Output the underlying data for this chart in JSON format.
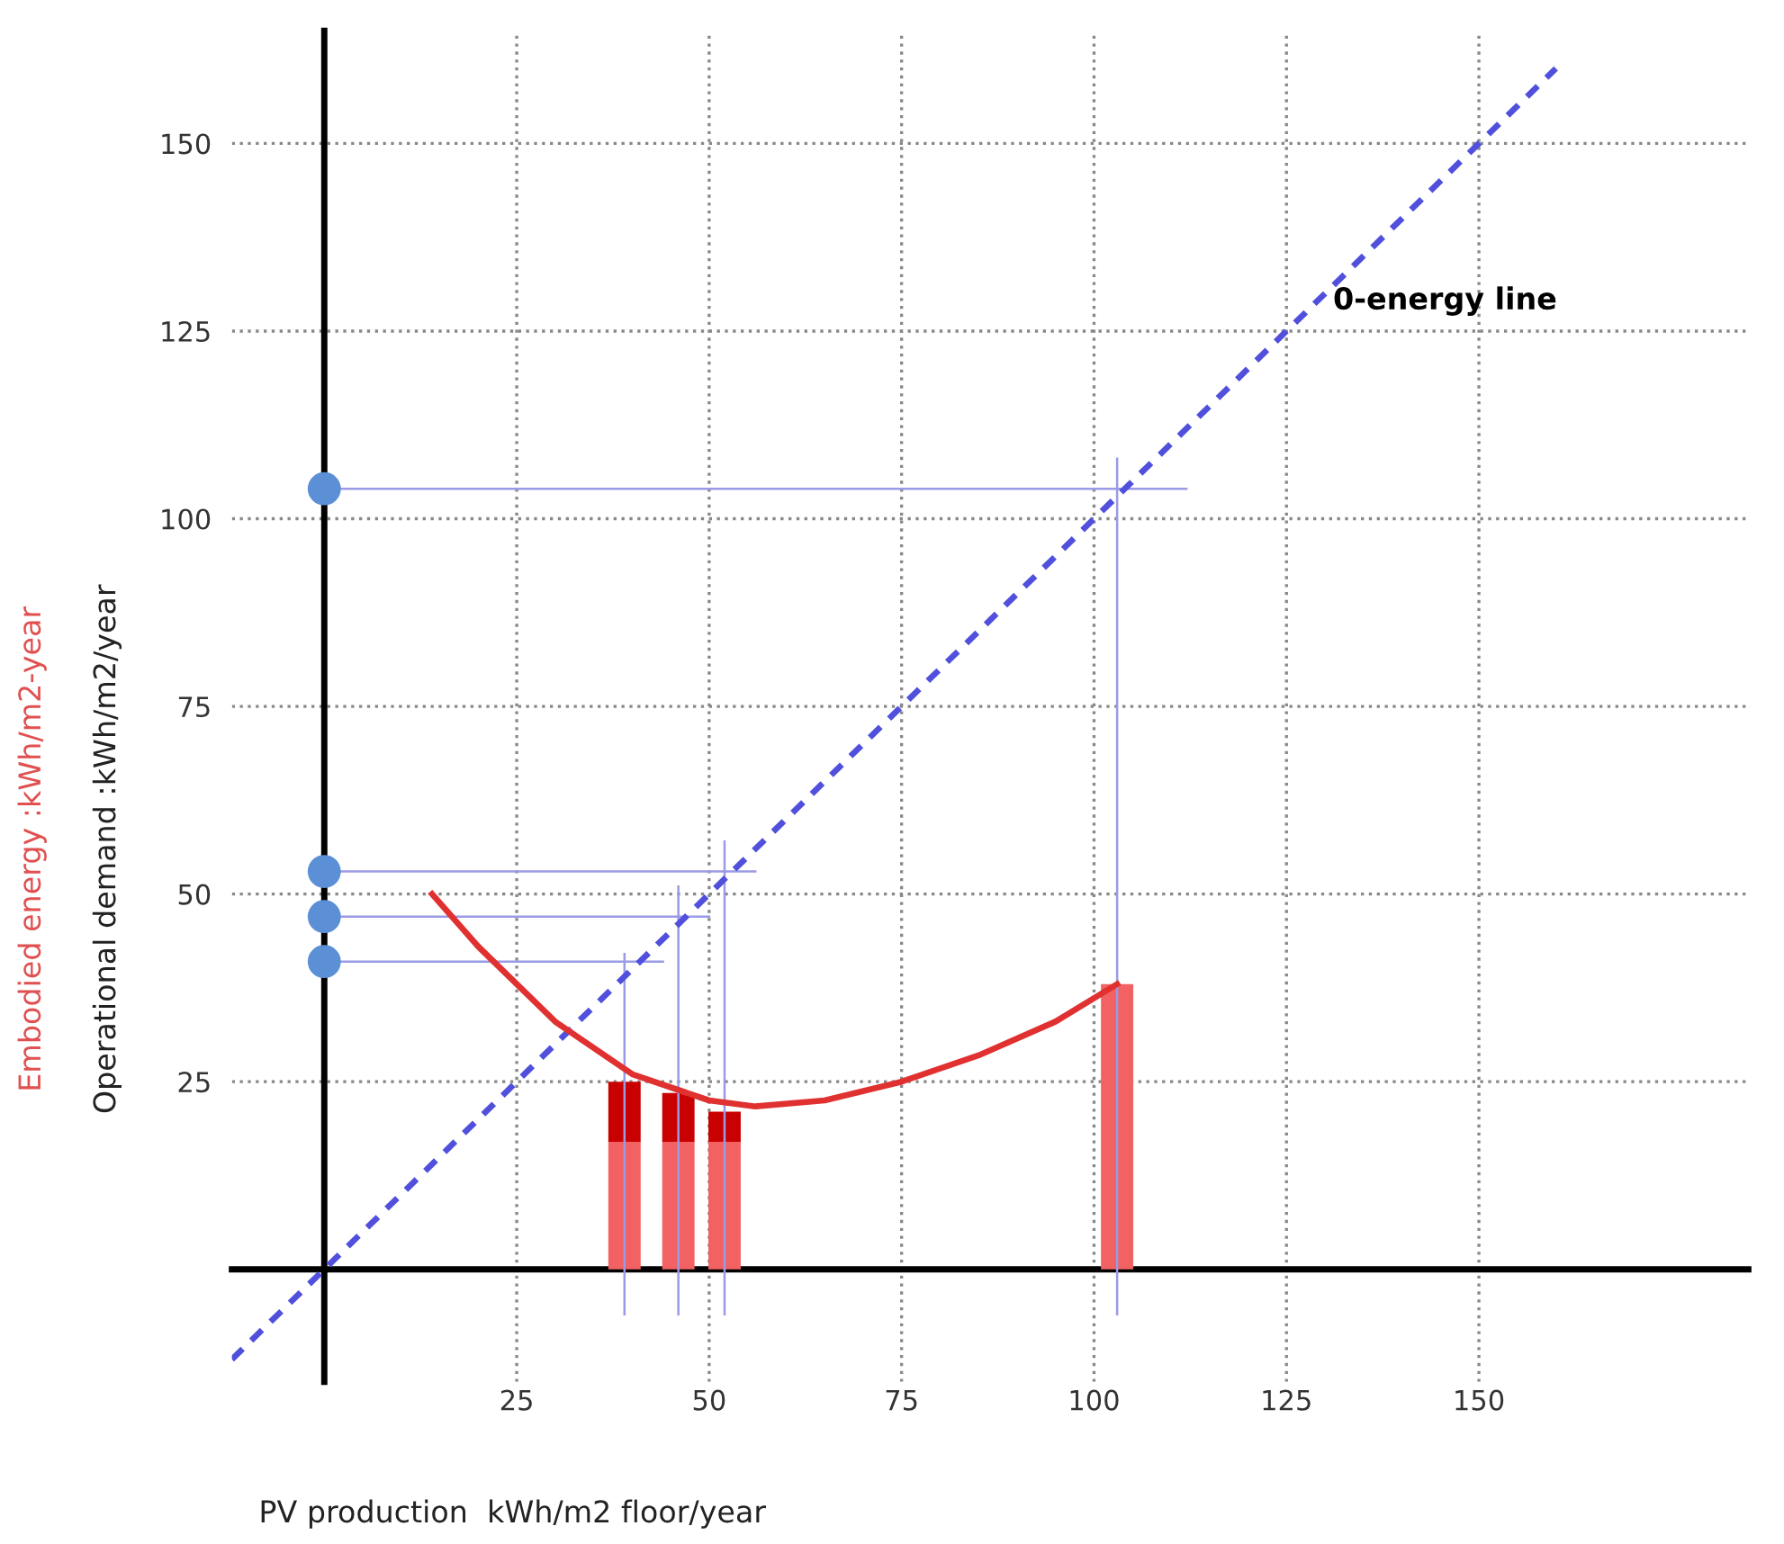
{
  "chart_data": {
    "type": "bar",
    "stacked": true,
    "xlabel": "PV production  kWh/m2 floor/year",
    "ylabel": "Operational demand :kWh/m2/year",
    "annotations": [
      "0-energy line",
      "Embodied energy :kWh/m2-year"
    ],
    "xlim": [
      -12,
      185
    ],
    "ylim": [
      -15,
      165
    ],
    "xticks": [
      25,
      50,
      75,
      100,
      125,
      150
    ],
    "yticks": [
      25,
      50,
      75,
      100,
      125,
      150
    ],
    "grid": true,
    "series": [
      {
        "x": [
          39,
          46,
          52,
          103
        ],
        "color": "#f26262",
        "values": [
          17,
          17,
          17,
          38
        ]
      },
      {
        "x": [
          39,
          46,
          52
        ],
        "color": "#c80000",
        "values": [
          8,
          6.5,
          4
        ]
      },
      {
        "type": "line",
        "x": [
          -2,
          112
        ],
        "values": [
          104,
          104
        ],
        "color": "#9a9ae6",
        "line_style": "solid"
      },
      {
        "type": "line",
        "x": [
          -2,
          56
        ],
        "values": [
          53,
          53
        ],
        "color": "#9a9ae6",
        "line_style": "solid"
      },
      {
        "type": "line",
        "x": [
          -2,
          50
        ],
        "values": [
          47,
          47
        ],
        "color": "#9a9ae6",
        "line_style": "solid"
      },
      {
        "type": "line",
        "x": [
          -2,
          44
        ],
        "values": [
          41,
          41
        ],
        "color": "#9a9ae6",
        "line_style": "solid"
      },
      {
        "type": "line",
        "x": [
          39,
          39
        ],
        "values": [
          -6,
          42
        ],
        "color": "#9a9ae6",
        "line_style": "solid"
      },
      {
        "type": "line",
        "x": [
          46,
          46
        ],
        "values": [
          -6,
          51
        ],
        "color": "#9a9ae6",
        "line_style": "solid"
      },
      {
        "type": "line",
        "x": [
          52,
          52
        ],
        "values": [
          -6,
          57
        ],
        "color": "#9a9ae6",
        "line_style": "solid"
      },
      {
        "type": "line",
        "x": [
          103,
          103
        ],
        "values": [
          -6,
          108
        ],
        "color": "#9a9ae6",
        "line_style": "solid"
      },
      {
        "type": "line",
        "x": [
          -12,
          160
        ],
        "values": [
          -12,
          160
        ],
        "color": "#5050dd",
        "line_style": "dashed"
      },
      {
        "type": "line",
        "x": [
          14,
          20,
          30,
          40,
          50,
          56,
          65,
          75,
          85,
          95,
          103
        ],
        "values": [
          50,
          43,
          33,
          26,
          22.5,
          21.7,
          22.5,
          25,
          28.5,
          33,
          38
        ],
        "color": "#e03030",
        "line_style": "solid"
      },
      {
        "type": "scatter",
        "x": [
          0,
          0,
          0,
          0
        ],
        "values": [
          104,
          53,
          47,
          41
        ],
        "color": "#5b8fd6",
        "marker": "circle"
      }
    ]
  }
}
